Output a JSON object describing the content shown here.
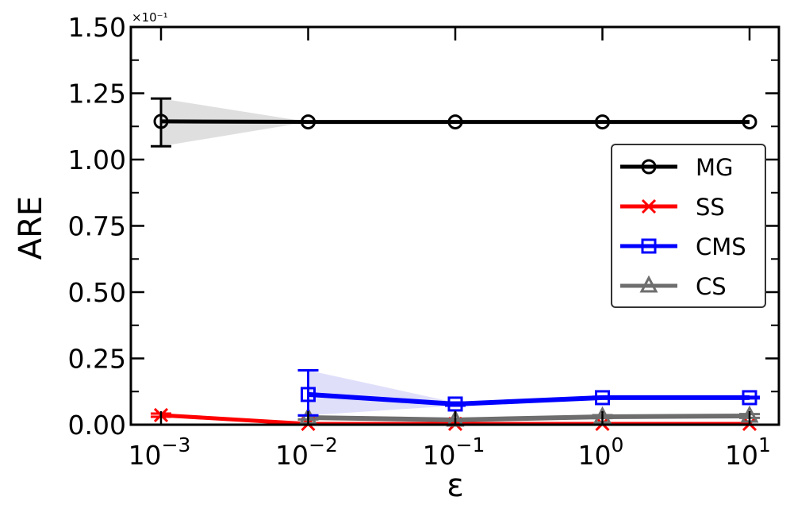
{
  "chart_data": {
    "type": "line",
    "title": "",
    "xlabel": "ε",
    "ylabel": "ARE",
    "xscale": "log",
    "x": [
      0.001,
      0.01,
      0.1,
      1,
      10
    ],
    "x_tick_labels": [
      {
        "base": "10",
        "exp": "−3"
      },
      {
        "base": "10",
        "exp": "−2"
      },
      {
        "base": "10",
        "exp": "−1"
      },
      {
        "base": "10",
        "exp": "0"
      },
      {
        "base": "10",
        "exp": "1"
      }
    ],
    "y_tick_labels": [
      "0.00",
      "0.25",
      "0.50",
      "0.75",
      "1.00",
      "1.25",
      "1.50"
    ],
    "y_offset_label": "×10⁻¹",
    "ylim": [
      0,
      1.5
    ],
    "grid": false,
    "legend_position": "center right",
    "series": [
      {
        "name": "MG",
        "color": "#000000",
        "marker": "circle",
        "x": [
          0.001,
          0.01,
          0.1,
          1,
          10
        ],
        "values": [
          1.144,
          1.142,
          1.142,
          1.142,
          1.142
        ],
        "err_low": [
          1.05,
          1.142,
          1.142,
          1.142,
          1.142
        ],
        "err_high": [
          1.23,
          1.142,
          1.142,
          1.142,
          1.142
        ],
        "band_color": "#dcdcdc"
      },
      {
        "name": "SS",
        "color": "#ff0000",
        "marker": "x",
        "x": [
          0.001,
          0.01,
          0.1,
          1,
          10
        ],
        "values": [
          0.036,
          0.003,
          0.003,
          0.003,
          0.003
        ],
        "err_low": [
          0.03,
          0.003,
          0.003,
          0.003,
          0.003
        ],
        "err_high": [
          0.042,
          0.003,
          0.003,
          0.003,
          0.003
        ]
      },
      {
        "name": "CMS",
        "color": "#0000ff",
        "marker": "square",
        "x": [
          0.01,
          0.1,
          1,
          10
        ],
        "values": [
          0.114,
          0.078,
          0.102,
          0.102
        ],
        "err_low": [
          0.035,
          0.072,
          0.099,
          0.099
        ],
        "err_high": [
          0.205,
          0.084,
          0.105,
          0.105
        ],
        "band_color": "#dcdcfa"
      },
      {
        "name": "CS",
        "color": "#6e6e6e",
        "marker": "triangle",
        "x": [
          0.01,
          0.1,
          1,
          10
        ],
        "values": [
          0.027,
          0.018,
          0.03,
          0.033
        ],
        "err_low": [
          0.02,
          0.015,
          0.025,
          0.026
        ],
        "err_high": [
          0.034,
          0.021,
          0.036,
          0.04
        ]
      }
    ]
  }
}
